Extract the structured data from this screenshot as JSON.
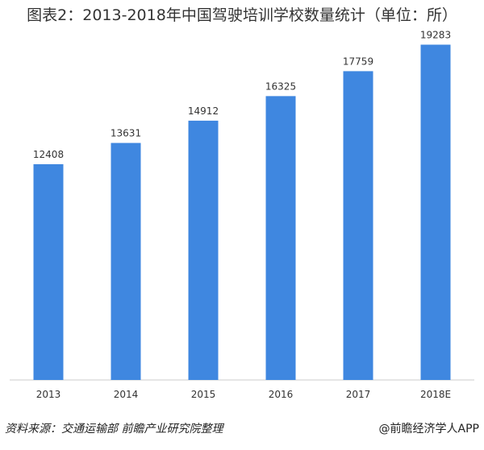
{
  "title": "图表2：2013-2018年中国驾驶培训学校数量统计（单位：所）",
  "footer": {
    "source": "资料来源：交通运输部 前瞻产业研究院整理",
    "brand": "@前瞻经济学人APP"
  },
  "colors": {
    "bar": "#3f87e0",
    "axis": "#cccccc",
    "text": "#333333"
  },
  "chart_data": {
    "type": "bar",
    "title": "图表2：2013-2018年中国驾驶培训学校数量统计（单位：所）",
    "categories": [
      "2013",
      "2014",
      "2015",
      "2016",
      "2017",
      "2018E"
    ],
    "values": [
      12408,
      13631,
      14912,
      16325,
      17759,
      19283
    ],
    "data_labels": [
      "12408",
      "13631",
      "14912",
      "16325",
      "17759",
      "19283"
    ],
    "xlabel": "",
    "ylabel": "",
    "ylim": [
      0,
      20000
    ],
    "grid": false,
    "legend": "none"
  }
}
